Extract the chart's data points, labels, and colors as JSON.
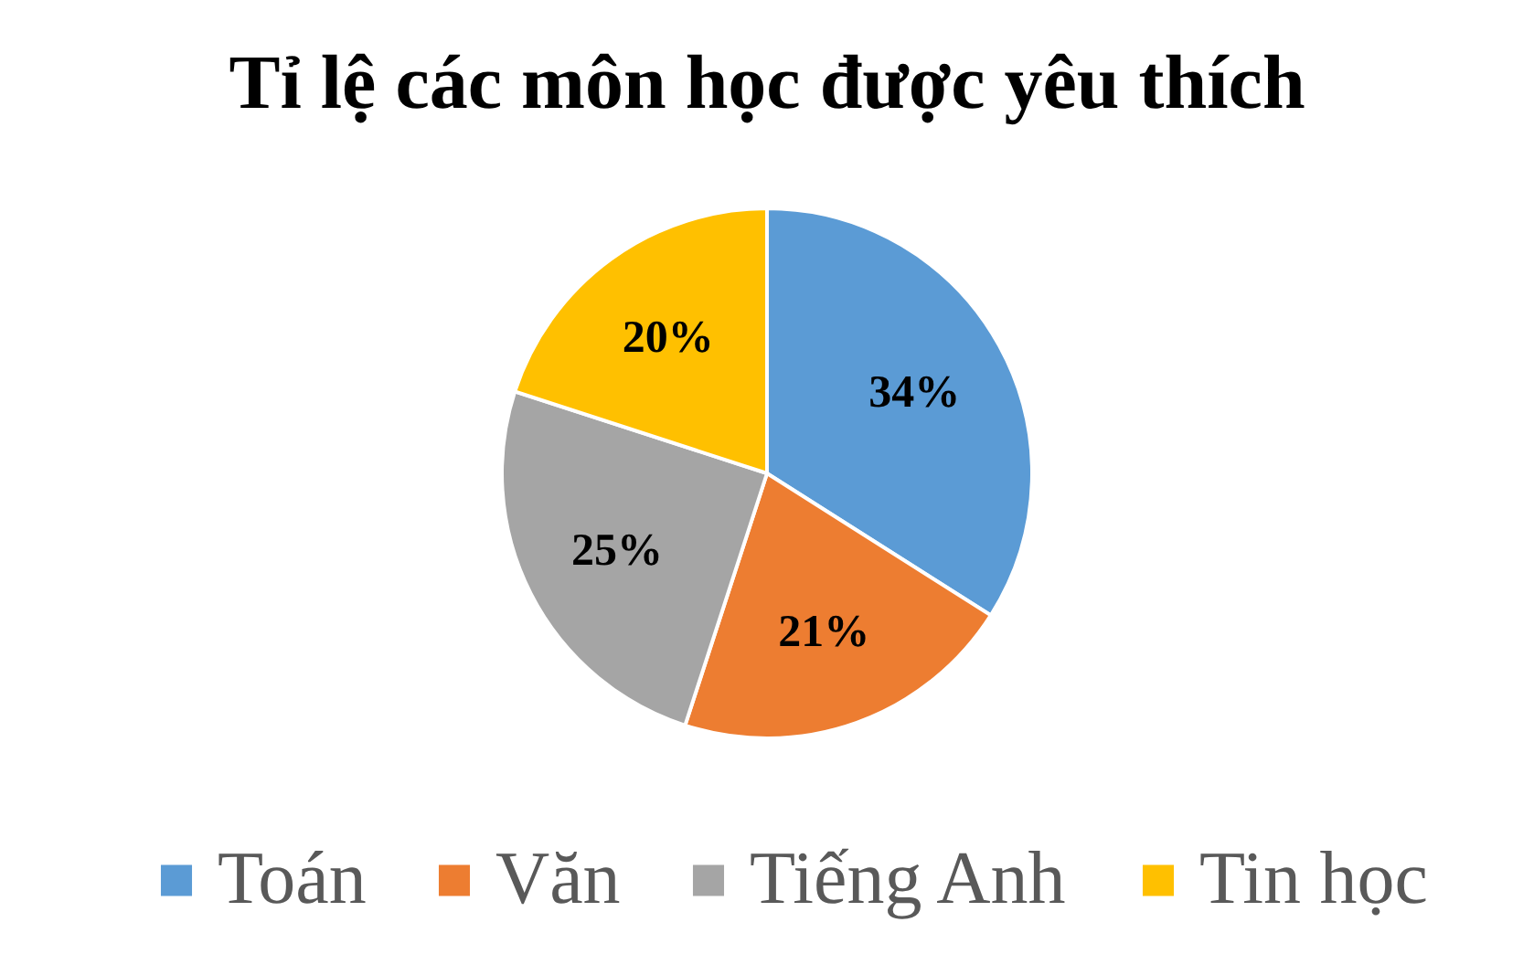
{
  "chart_data": {
    "type": "pie",
    "title": "Tỉ lệ các môn học được yêu thích",
    "categories": [
      "Toán",
      "Văn",
      "Tiếng Anh",
      "Tin học"
    ],
    "values": [
      34,
      21,
      25,
      20
    ],
    "colors": [
      "#5b9bd5",
      "#ed7d31",
      "#a5a5a5",
      "#ffc000"
    ],
    "value_labels": [
      "34%",
      "21%",
      "25%",
      "20%"
    ],
    "legend": "bottom"
  }
}
